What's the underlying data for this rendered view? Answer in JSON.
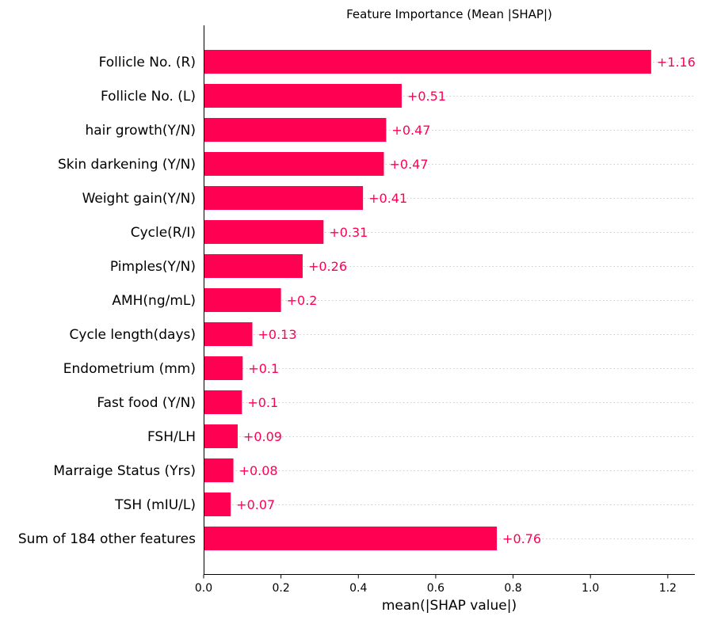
{
  "chart_data": {
    "type": "bar",
    "orientation": "horizontal",
    "title": "Feature Importance (Mean |SHAP|)",
    "xlabel": "mean(|SHAP value|)",
    "ylabel": "",
    "xlim": [
      0,
      1.27
    ],
    "xticks": [
      0.0,
      0.2,
      0.4,
      0.6,
      0.8,
      1.0,
      1.2
    ],
    "xtick_labels": [
      "0.0",
      "0.2",
      "0.4",
      "0.6",
      "0.8",
      "1.0",
      "1.2"
    ],
    "grid": "horizontal dotted",
    "bar_color": "#ff0052",
    "value_label_color": "#ff0052",
    "categories": [
      "Follicle No. (R)",
      "Follicle No. (L)",
      "hair growth(Y/N)",
      "Skin darkening (Y/N)",
      "Weight gain(Y/N)",
      "Cycle(R/I)",
      "Pimples(Y/N)",
      "AMH(ng/mL)",
      "Cycle length(days)",
      "Endometrium (mm)",
      "Fast food (Y/N)",
      "FSH/LH",
      "Marraige Status (Yrs)",
      "TSH (mIU/L)",
      "Sum of 184 other features"
    ],
    "values": [
      1.157,
      0.512,
      0.472,
      0.466,
      0.412,
      0.31,
      0.256,
      0.2,
      0.126,
      0.101,
      0.099,
      0.088,
      0.077,
      0.07,
      0.758
    ],
    "value_labels": [
      "+1.16",
      "+0.51",
      "+0.47",
      "+0.47",
      "+0.41",
      "+0.31",
      "+0.26",
      "+0.2",
      "+0.13",
      "+0.1",
      "+0.1",
      "+0.09",
      "+0.08",
      "+0.07",
      "+0.76"
    ]
  }
}
